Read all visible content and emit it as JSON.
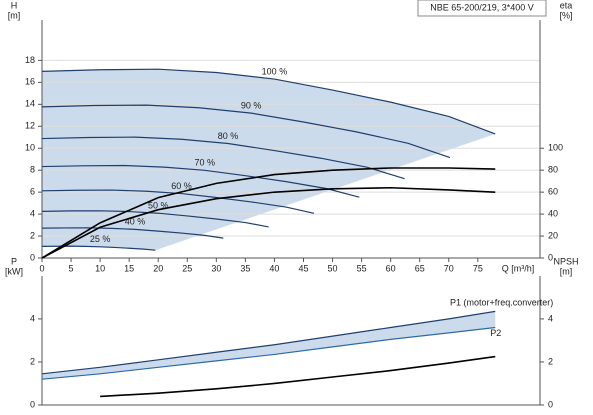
{
  "chart_data": [
    {
      "type": "line",
      "title": "NBE 65-200/219, 3*400 V",
      "ylabel": "H",
      "yunit": "[m]",
      "y2label": "eta",
      "y2unit": "[%]",
      "xlabel": "Q [m³/h]",
      "xlim": [
        0,
        85.7
      ],
      "xticks": [
        0,
        5,
        10,
        15,
        20,
        25,
        30,
        35,
        40,
        45,
        50,
        55,
        60,
        65,
        70,
        75
      ],
      "ylim": [
        0,
        21.5
      ],
      "yticks": [
        0,
        2,
        4,
        6,
        8,
        10,
        12,
        14,
        16,
        18
      ],
      "y2lim": [
        0,
        215
      ],
      "y2ticks": [
        0,
        20,
        40,
        60,
        80,
        100
      ],
      "grid": true,
      "shade": "#c3d5e9",
      "series": [
        {
          "name": "100 %",
          "color": "#1f3f6e",
          "x": [
            0,
            10,
            20,
            30,
            40,
            50,
            60,
            70,
            78
          ],
          "values": [
            17.0,
            17.15,
            17.2,
            16.9,
            16.3,
            15.3,
            14.2,
            12.9,
            11.3
          ]
        },
        {
          "name": "90 %",
          "color": "#1f3f6e",
          "x": [
            0,
            9,
            18,
            27,
            36,
            45,
            54,
            63,
            70.2
          ],
          "values": [
            13.77,
            13.89,
            13.93,
            13.69,
            13.2,
            12.39,
            11.5,
            10.45,
            9.15
          ]
        },
        {
          "name": "80 %",
          "color": "#1f3f6e",
          "x": [
            0,
            8,
            16,
            24,
            32,
            40,
            48,
            56,
            62.4
          ],
          "values": [
            10.88,
            10.98,
            11.01,
            10.82,
            10.43,
            9.79,
            9.09,
            8.26,
            7.23
          ]
        },
        {
          "name": "70 %",
          "color": "#1f3f6e",
          "x": [
            0,
            7,
            14,
            21,
            28,
            35,
            42,
            49,
            54.6
          ],
          "values": [
            8.33,
            8.4,
            8.43,
            8.28,
            7.99,
            7.5,
            6.96,
            6.32,
            5.54
          ]
        },
        {
          "name": "60 %",
          "color": "#1f3f6e",
          "x": [
            0,
            6,
            12,
            18,
            24,
            30,
            36,
            42,
            46.8
          ],
          "values": [
            6.12,
            6.17,
            6.19,
            6.08,
            5.87,
            5.51,
            5.11,
            4.64,
            4.07
          ]
        },
        {
          "name": "50 %",
          "color": "#1f3f6e",
          "x": [
            0,
            5,
            10,
            15,
            20,
            25,
            30,
            35,
            39
          ],
          "values": [
            4.25,
            4.29,
            4.3,
            4.23,
            4.08,
            3.83,
            3.55,
            3.23,
            2.83
          ]
        },
        {
          "name": "40 %",
          "color": "#1f3f6e",
          "x": [
            0,
            4,
            8,
            12,
            16,
            20,
            24,
            28,
            31.2
          ],
          "values": [
            2.72,
            2.74,
            2.75,
            2.7,
            2.61,
            2.45,
            2.27,
            2.06,
            1.81
          ]
        },
        {
          "name": "25 %",
          "color": "#1f3f6e",
          "x": [
            0,
            2.5,
            5,
            7.5,
            10,
            12.5,
            15,
            17.5,
            19.5
          ],
          "values": [
            1.06,
            1.07,
            1.08,
            1.06,
            1.02,
            0.96,
            0.89,
            0.81,
            0.71
          ]
        },
        {
          "color": "#000000",
          "axis": "y2",
          "x": [
            0,
            10,
            20,
            30,
            40,
            50,
            60,
            70,
            78
          ],
          "values": [
            0,
            28,
            44,
            54,
            60,
            63,
            64,
            62,
            60
          ]
        },
        {
          "color": "#000000",
          "axis": "y2",
          "x": [
            0,
            10,
            20,
            30,
            40,
            50,
            60,
            70,
            78
          ],
          "values": [
            0,
            32,
            55,
            68,
            76,
            80,
            82,
            82,
            81
          ]
        }
      ]
    },
    {
      "type": "line",
      "ylabel": "P",
      "yunit": "[kW]",
      "y2label": "NPSH",
      "y2unit": "[m]",
      "xlim": [
        0,
        85.7
      ],
      "ylim": [
        0,
        5.9
      ],
      "yticks": [
        0,
        2,
        4
      ],
      "y2lim": [
        0,
        5.9
      ],
      "y2ticks": [
        0,
        2,
        4
      ],
      "grid": false,
      "shade": "#c3d5e9",
      "series": [
        {
          "name": "P1 (motor+freq.converter)",
          "color": "#1f3f6e",
          "x": [
            0,
            10,
            20,
            30,
            40,
            50,
            60,
            70,
            78
          ],
          "values": [
            1.45,
            1.75,
            2.1,
            2.45,
            2.8,
            3.2,
            3.6,
            4.0,
            4.35
          ]
        },
        {
          "name": "P2",
          "color": "#2d6aa8",
          "x": [
            0,
            10,
            20,
            30,
            40,
            50,
            60,
            70,
            78
          ],
          "values": [
            1.2,
            1.45,
            1.75,
            2.05,
            2.35,
            2.7,
            3.05,
            3.35,
            3.6
          ]
        },
        {
          "color": "#000000",
          "axis": "y2",
          "x": [
            10,
            20,
            30,
            40,
            50,
            60,
            70,
            78
          ],
          "values": [
            0.4,
            0.55,
            0.75,
            1.0,
            1.3,
            1.6,
            1.95,
            2.25
          ]
        }
      ]
    }
  ]
}
